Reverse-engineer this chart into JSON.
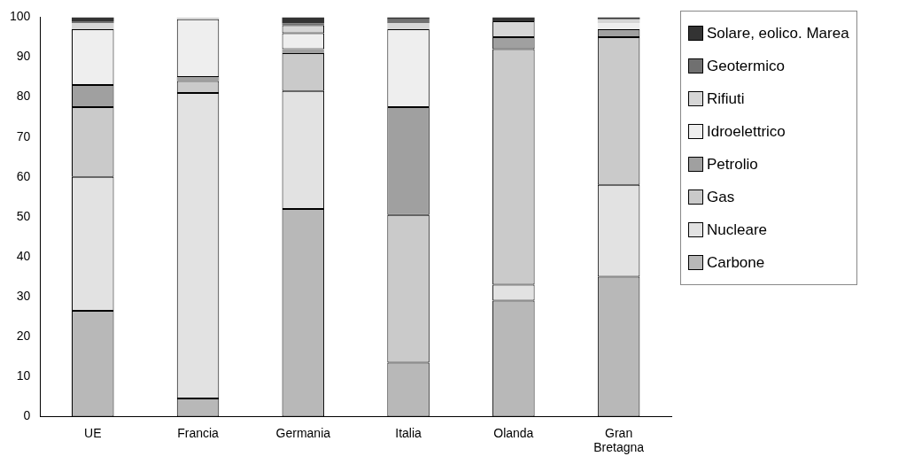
{
  "chart_data": {
    "type": "bar",
    "stacked": true,
    "categories": [
      "UE",
      "Francia",
      "Germania",
      "Italia",
      "Olanda",
      "Gran Bretagna"
    ],
    "series": [
      {
        "name": "Carbone",
        "color": "#b8b8b8",
        "values": [
          26.5,
          4.5,
          52,
          13.5,
          29,
          35
        ]
      },
      {
        "name": "Nucleare",
        "color": "#e2e2e2",
        "values": [
          33.5,
          76.5,
          29.5,
          0,
          4,
          23
        ]
      },
      {
        "name": "Gas",
        "color": "#cacaca",
        "values": [
          17.5,
          3,
          9.5,
          37,
          59,
          37
        ]
      },
      {
        "name": "Petrolio",
        "color": "#a0a0a0",
        "values": [
          5.5,
          1,
          1,
          27,
          3,
          2
        ]
      },
      {
        "name": "Idroelettrico",
        "color": "#eeeeee",
        "values": [
          14,
          14.5,
          4,
          19.5,
          0,
          1.5
        ]
      },
      {
        "name": "Rifiuti",
        "color": "#d6d6d6",
        "values": [
          1.5,
          0.5,
          2,
          1.5,
          4,
          1
        ]
      },
      {
        "name": "Geotermico",
        "color": "#707070",
        "values": [
          0.5,
          0,
          0.5,
          1,
          0,
          0
        ]
      },
      {
        "name": "Solare, eolico. Marea",
        "color": "#333333",
        "values": [
          1,
          0,
          1.5,
          0.5,
          1,
          0.5
        ]
      }
    ],
    "ylim": [
      0,
      100
    ],
    "yticks": [
      0,
      10,
      20,
      30,
      40,
      50,
      60,
      70,
      80,
      90,
      100
    ],
    "grid": false,
    "legend": "right"
  }
}
